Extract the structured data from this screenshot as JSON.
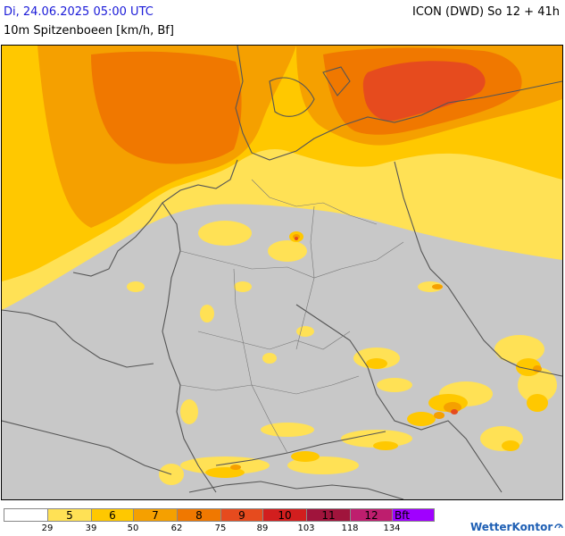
{
  "header": {
    "date": "Di, 24.06.2025 05:00 UTC",
    "model": "ICON (DWD) So 12 + 41h",
    "parameter": "10m Spitzenboeen [km/h, Bf]"
  },
  "legend": {
    "segments": [
      {
        "label": "",
        "color": "#ffffff"
      },
      {
        "label": "5",
        "color": "#ffe155"
      },
      {
        "label": "6",
        "color": "#ffc800"
      },
      {
        "label": "7",
        "color": "#f5a000"
      },
      {
        "label": "8",
        "color": "#f07800"
      },
      {
        "label": "9",
        "color": "#e64b1e"
      },
      {
        "label": "10",
        "color": "#d21e1e"
      },
      {
        "label": "11",
        "color": "#a0143c"
      },
      {
        "label": "12",
        "color": "#be1e6e"
      },
      {
        "label": "Bft",
        "color": "#a000ff"
      }
    ],
    "ticks": [
      "29",
      "39",
      "50",
      "62",
      "75",
      "89",
      "103",
      "118",
      "134"
    ]
  },
  "logo": {
    "text": "WetterKontor"
  },
  "colors": {
    "land_calm": "#c8c8c8",
    "border": "#555555"
  }
}
